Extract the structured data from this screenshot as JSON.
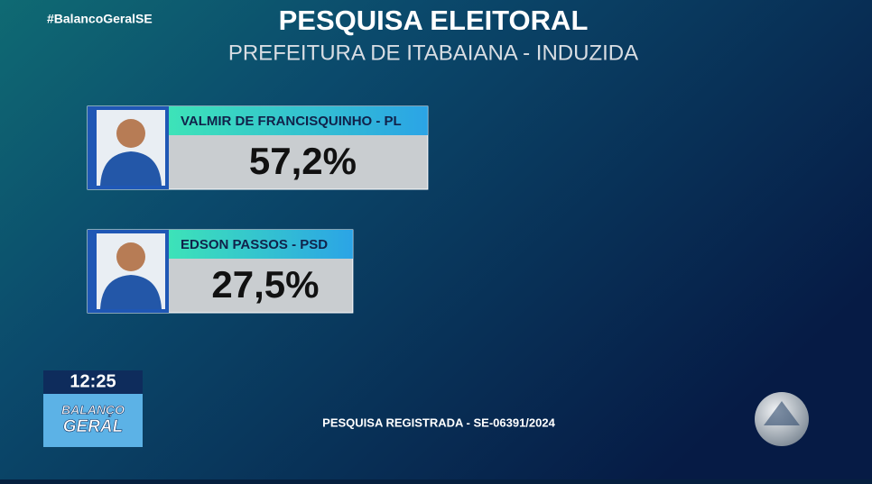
{
  "chart_data": {
    "type": "bar",
    "title": "PESQUISA ELEITORAL",
    "subtitle": "PREFEITURA DE ITABAIANA - INDUZIDA",
    "categories": [
      "VALMIR DE FRANCISQUINHO - PL",
      "EDSON PASSOS - PSD"
    ],
    "values": [
      57.2,
      27.5
    ],
    "value_labels": [
      "57,2%",
      "27,5%"
    ],
    "color": "#c9cdd0",
    "header_colors": [
      "#3de3b8",
      "#2ba4e6"
    ],
    "footnote": "PESQUISA REGISTRADA - SE-06391/2024"
  },
  "overlay": {
    "hashtag": "#BalancoGeralSE",
    "clock": "12:25",
    "logo": [
      "BALANÇO",
      "GERAL"
    ]
  }
}
